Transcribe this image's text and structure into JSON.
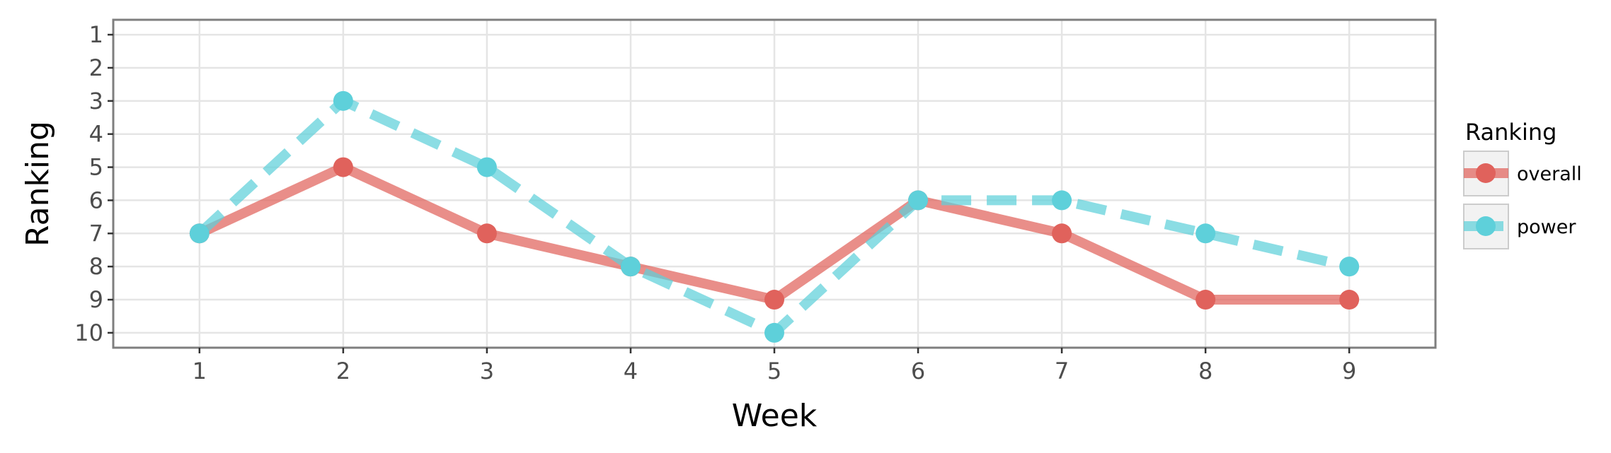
{
  "chart_data": {
    "type": "line",
    "title": "",
    "xlabel": "Week",
    "ylabel": "Ranking",
    "x": [
      1,
      2,
      3,
      4,
      5,
      6,
      7,
      8,
      9
    ],
    "x_ticks": [
      "1",
      "2",
      "3",
      "4",
      "5",
      "6",
      "7",
      "8",
      "9"
    ],
    "y_ticks": [
      "1",
      "2",
      "3",
      "4",
      "5",
      "6",
      "7",
      "8",
      "9",
      "10"
    ],
    "xlim": [
      0.4,
      9.6
    ],
    "ylim": [
      10.45,
      0.55
    ],
    "y_reversed": true,
    "grid": true,
    "legend": {
      "title": "Ranking",
      "position": "right"
    },
    "series": [
      {
        "name": "overall",
        "values": [
          7,
          5,
          7,
          8,
          9,
          6,
          7,
          9,
          9
        ],
        "color": "#E0625C",
        "line_style": "solid"
      },
      {
        "name": "power",
        "values": [
          7,
          3,
          5,
          8,
          10,
          6,
          6,
          7,
          8
        ],
        "color": "#5ED0DA",
        "line_style": "dashed"
      }
    ]
  }
}
